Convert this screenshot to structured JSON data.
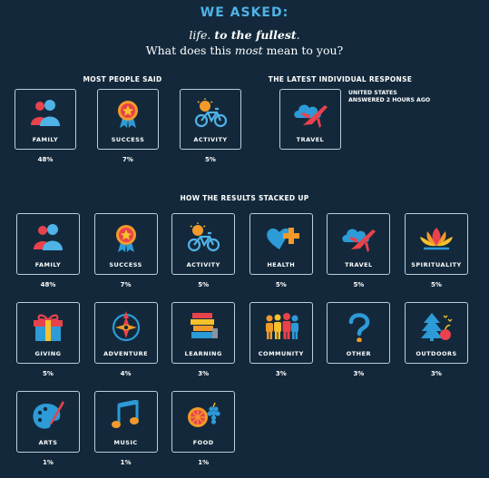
{
  "header": {
    "title": "WE ASKED:",
    "tagline_a": "life",
    "tagline_sep": ". ",
    "tagline_b": "to the fullest",
    "tagline_end": ".",
    "question_a": "What does this ",
    "question_em": "most",
    "question_b": " mean to you?"
  },
  "most_people": {
    "title": "MOST PEOPLE SAID",
    "items": [
      {
        "label": "FAMILY",
        "pct": "48%",
        "icon": "family-icon"
      },
      {
        "label": "SUCCESS",
        "pct": "7%",
        "icon": "medal-icon"
      },
      {
        "label": "ACTIVITY",
        "pct": "5%",
        "icon": "bicycle-icon"
      }
    ]
  },
  "latest": {
    "title": "THE LATEST INDIVIDUAL RESPONSE",
    "location": "UNITED STATES",
    "time": "ANSWERED 2 HOURS AGO",
    "label": "TRAVEL",
    "icon": "airplane-icon"
  },
  "results": {
    "title": "HOW THE RESULTS STACKED UP",
    "items": [
      {
        "label": "FAMILY",
        "pct": "48%",
        "icon": "family-icon"
      },
      {
        "label": "SUCCESS",
        "pct": "7%",
        "icon": "medal-icon"
      },
      {
        "label": "ACTIVITY",
        "pct": "5%",
        "icon": "bicycle-icon"
      },
      {
        "label": "HEALTH",
        "pct": "5%",
        "icon": "heart-cross-icon"
      },
      {
        "label": "TRAVEL",
        "pct": "5%",
        "icon": "airplane-icon"
      },
      {
        "label": "SPIRITUALITY",
        "pct": "5%",
        "icon": "lotus-icon"
      },
      {
        "label": "GIVING",
        "pct": "5%",
        "icon": "gift-icon"
      },
      {
        "label": "ADVENTURE",
        "pct": "4%",
        "icon": "compass-icon"
      },
      {
        "label": "LEARNING",
        "pct": "3%",
        "icon": "books-icon"
      },
      {
        "label": "COMMUNITY",
        "pct": "3%",
        "icon": "people-icon"
      },
      {
        "label": "OTHER",
        "pct": "3%",
        "icon": "question-icon"
      },
      {
        "label": "OUTDOORS",
        "pct": "3%",
        "icon": "tree-icon"
      },
      {
        "label": "ARTS",
        "pct": "1%",
        "icon": "palette-icon"
      },
      {
        "label": "MUSIC",
        "pct": "1%",
        "icon": "music-note-icon"
      },
      {
        "label": "FOOD",
        "pct": "1%",
        "icon": "fruit-icon"
      }
    ]
  },
  "colors": {
    "background": "#13293b",
    "accent_blue": "#4fb3e8",
    "border": "#b8d0dc",
    "red": "#e8424c",
    "orange": "#f39a2a",
    "yellow": "#f5c22b"
  }
}
